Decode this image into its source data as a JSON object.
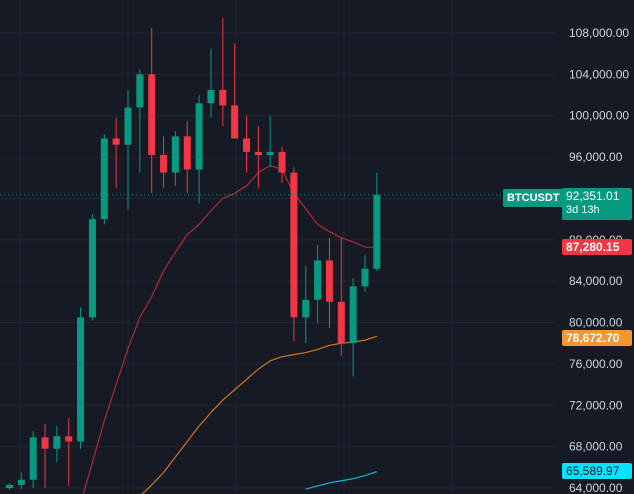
{
  "chart_data": {
    "type": "candlestick",
    "symbol": "BTCUSDT",
    "ylim": [
      63800,
      110200
    ],
    "price_axis": {
      "ticks": [
        64000,
        68000,
        72000,
        76000,
        80000,
        84000,
        88000,
        92000,
        96000,
        100000,
        104000,
        108000
      ],
      "tick_labels": [
        "64,000.00",
        "68,000.00",
        "72,000.00",
        "76,000.00",
        "80,000.00",
        "84,000.00",
        "88,000.00",
        "92,000.00",
        "96,000.00",
        "100,000.00",
        "104,000.00",
        "108,000.00"
      ]
    },
    "candles": [
      {
        "open": 64000,
        "high": 64500,
        "low": 63800,
        "close": 64300
      },
      {
        "open": 64300,
        "high": 65500,
        "low": 63900,
        "close": 64800
      },
      {
        "open": 64800,
        "high": 69500,
        "low": 64000,
        "close": 68900
      },
      {
        "open": 68900,
        "high": 70200,
        "low": 64000,
        "close": 67800
      },
      {
        "open": 67800,
        "high": 70000,
        "low": 66500,
        "close": 69000
      },
      {
        "open": 69000,
        "high": 70800,
        "low": 64200,
        "close": 68500
      },
      {
        "open": 68500,
        "high": 81500,
        "low": 67800,
        "close": 80500
      },
      {
        "open": 80500,
        "high": 90500,
        "low": 80200,
        "close": 90000
      },
      {
        "open": 90000,
        "high": 98200,
        "low": 89500,
        "close": 97800
      },
      {
        "open": 97800,
        "high": 99800,
        "low": 93000,
        "close": 97200
      },
      {
        "open": 97200,
        "high": 102500,
        "low": 91000,
        "close": 100800
      },
      {
        "open": 100800,
        "high": 104500,
        "low": 94500,
        "close": 104000
      },
      {
        "open": 104000,
        "high": 108500,
        "low": 92500,
        "close": 96200
      },
      {
        "open": 96200,
        "high": 98000,
        "low": 93000,
        "close": 94500
      },
      {
        "open": 94500,
        "high": 98500,
        "low": 93200,
        "close": 98000
      },
      {
        "open": 98000,
        "high": 99500,
        "low": 92500,
        "close": 94800
      },
      {
        "open": 94800,
        "high": 102000,
        "low": 91500,
        "close": 101200
      },
      {
        "open": 101200,
        "high": 106500,
        "low": 99800,
        "close": 102500
      },
      {
        "open": 102500,
        "high": 109500,
        "low": 99000,
        "close": 101000
      },
      {
        "open": 101000,
        "high": 107000,
        "low": 98000,
        "close": 97800
      },
      {
        "open": 97800,
        "high": 100000,
        "low": 94500,
        "close": 96500
      },
      {
        "open": 96500,
        "high": 99000,
        "low": 93000,
        "close": 96200
      },
      {
        "open": 96200,
        "high": 100000,
        "low": 95000,
        "close": 96500
      },
      {
        "open": 96500,
        "high": 97000,
        "low": 93500,
        "close": 94500
      },
      {
        "open": 94500,
        "high": 95000,
        "low": 78200,
        "close": 80500
      },
      {
        "open": 80500,
        "high": 85500,
        "low": 78000,
        "close": 82200
      },
      {
        "open": 82200,
        "high": 87500,
        "low": 80000,
        "close": 86000
      },
      {
        "open": 86000,
        "high": 88200,
        "low": 79500,
        "close": 82000
      },
      {
        "open": 82000,
        "high": 88200,
        "low": 76800,
        "close": 78000
      },
      {
        "open": 78000,
        "high": 84300,
        "low": 74800,
        "close": 83500
      },
      {
        "open": 83500,
        "high": 86500,
        "low": 83000,
        "close": 85200
      },
      {
        "open": 85200,
        "high": 94500,
        "low": 85000,
        "close": 92351
      }
    ],
    "series": [
      {
        "name": "",
        "color": "#b22833",
        "values": [
          null,
          null,
          null,
          null,
          null,
          null,
          62500,
          66500,
          70500,
          74000,
          77500,
          80500,
          82500,
          85000,
          86800,
          88500,
          89500,
          90800,
          92000,
          92500,
          93200,
          94500,
          95200,
          94800,
          92500,
          91000,
          89500,
          88800,
          88200,
          87800,
          87300,
          87280.15
        ]
      },
      {
        "name": "",
        "color": "#d4741c",
        "values": [
          null,
          null,
          null,
          null,
          null,
          null,
          null,
          null,
          null,
          null,
          null,
          63200,
          64300,
          65500,
          67000,
          68500,
          70000,
          71300,
          72500,
          73500,
          74500,
          75500,
          76300,
          76700,
          76900,
          77100,
          77400,
          77800,
          78000,
          78100,
          78300,
          78672.7
        ]
      },
      {
        "name": "",
        "color": "#00bcd4",
        "values": [
          null,
          null,
          null,
          null,
          null,
          null,
          null,
          null,
          null,
          null,
          null,
          null,
          null,
          null,
          null,
          null,
          null,
          null,
          null,
          null,
          null,
          null,
          null,
          null,
          null,
          63900,
          64200,
          64500,
          64700,
          64900,
          65200,
          65589.97
        ]
      }
    ]
  },
  "colors": {
    "up": "#089981",
    "down": "#f23645",
    "grid": "#232632",
    "background": "#161a25",
    "price_line": "#089981"
  },
  "tags": {
    "symbol": "BTCUSDT",
    "price": "92,351.01",
    "countdown": "3d 13h",
    "ma_red": "87,280.15",
    "ma_orange": "78,672.70",
    "ma_cyan": "65,589.97"
  }
}
